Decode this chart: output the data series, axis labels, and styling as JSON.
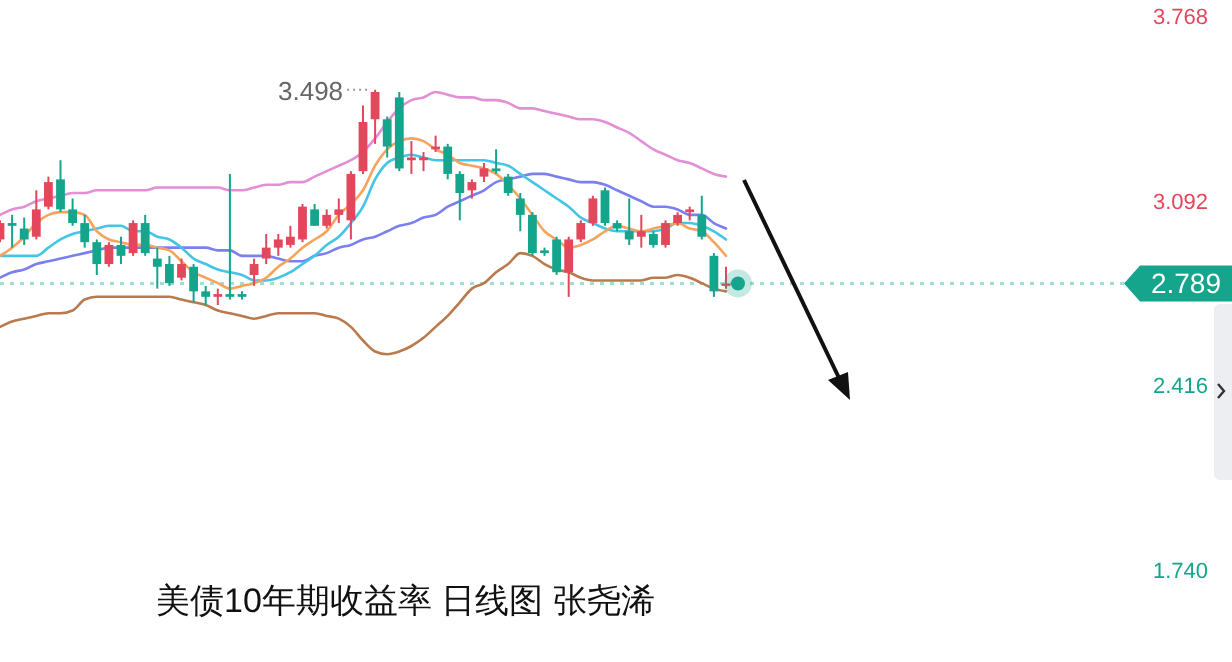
{
  "chart_data": {
    "type": "candlestick",
    "title": "美债10年期收益率  日线图 张尧浠",
    "categories": [
      null,
      null,
      null,
      null,
      null,
      null,
      null,
      null,
      null,
      null,
      null,
      null,
      null,
      null,
      null,
      null,
      null,
      null,
      null,
      null,
      null,
      null,
      null,
      null,
      null,
      null,
      null,
      null,
      null,
      null,
      null,
      null,
      null,
      null,
      null,
      null,
      null,
      null,
      null,
      null,
      null,
      null,
      null,
      null,
      null,
      null,
      null,
      null,
      null,
      null,
      null,
      null,
      null,
      null,
      null,
      null,
      null,
      null,
      null,
      null,
      null
    ],
    "ohlc": [
      [
        2.95,
        3.02,
        2.94,
        3.01
      ],
      [
        3.01,
        3.04,
        2.92,
        3.0
      ],
      [
        2.99,
        3.03,
        2.93,
        2.95
      ],
      [
        2.96,
        3.13,
        2.95,
        3.06
      ],
      [
        3.07,
        3.18,
        3.06,
        3.16
      ],
      [
        3.17,
        3.24,
        3.05,
        3.06
      ],
      [
        3.06,
        3.1,
        3.0,
        3.01
      ],
      [
        3.01,
        3.04,
        2.92,
        2.94
      ],
      [
        2.94,
        2.95,
        2.82,
        2.86
      ],
      [
        2.86,
        2.94,
        2.85,
        2.93
      ],
      [
        2.93,
        2.96,
        2.86,
        2.89
      ],
      [
        2.9,
        3.02,
        2.89,
        3.01
      ],
      [
        3.01,
        3.04,
        2.89,
        2.9
      ],
      [
        2.88,
        2.92,
        2.77,
        2.85
      ],
      [
        2.86,
        2.89,
        2.78,
        2.79
      ],
      [
        2.81,
        2.88,
        2.8,
        2.86
      ],
      [
        2.85,
        2.86,
        2.72,
        2.76
      ],
      [
        2.76,
        2.78,
        2.71,
        2.74
      ],
      [
        2.74,
        2.77,
        2.71,
        2.75
      ],
      [
        2.75,
        3.19,
        2.73,
        2.74
      ],
      [
        2.75,
        2.76,
        2.73,
        2.74
      ],
      [
        2.82,
        2.88,
        2.78,
        2.86
      ],
      [
        2.88,
        2.97,
        2.86,
        2.92
      ],
      [
        2.92,
        2.97,
        2.89,
        2.95
      ],
      [
        2.93,
        3.0,
        2.92,
        2.96
      ],
      [
        2.95,
        3.08,
        2.94,
        3.07
      ],
      [
        3.06,
        3.08,
        3.0,
        3.0
      ],
      [
        3.0,
        3.06,
        2.99,
        3.04
      ],
      [
        3.04,
        3.1,
        3.01,
        3.06
      ],
      [
        3.02,
        3.2,
        2.95,
        3.19
      ],
      [
        3.2,
        3.44,
        3.19,
        3.38
      ],
      [
        3.39,
        3.498,
        3.3,
        3.49
      ],
      [
        3.39,
        3.4,
        3.25,
        3.29
      ],
      [
        3.47,
        3.49,
        3.2,
        3.21
      ],
      [
        3.24,
        3.31,
        3.19,
        3.25
      ],
      [
        3.24,
        3.27,
        3.2,
        3.25
      ],
      [
        3.28,
        3.33,
        3.27,
        3.29
      ],
      [
        3.29,
        3.3,
        3.17,
        3.19
      ],
      [
        3.19,
        3.2,
        3.02,
        3.12
      ],
      [
        3.13,
        3.17,
        3.1,
        3.16
      ],
      [
        3.18,
        3.23,
        3.16,
        3.21
      ],
      [
        3.21,
        3.28,
        3.19,
        3.2
      ],
      [
        3.18,
        3.19,
        3.11,
        3.12
      ],
      [
        3.1,
        3.12,
        2.98,
        3.04
      ],
      [
        3.04,
        3.05,
        2.89,
        2.9
      ],
      [
        2.91,
        2.92,
        2.89,
        2.9
      ],
      [
        2.95,
        2.96,
        2.82,
        2.83
      ],
      [
        2.83,
        2.96,
        2.74,
        2.95
      ],
      [
        2.95,
        3.02,
        2.94,
        3.01
      ],
      [
        3.01,
        3.11,
        3.0,
        3.1
      ],
      [
        3.13,
        3.14,
        3.0,
        3.01
      ],
      [
        3.01,
        3.02,
        2.98,
        2.99
      ],
      [
        2.98,
        3.1,
        2.93,
        2.95
      ],
      [
        2.96,
        3.04,
        2.92,
        2.98
      ],
      [
        2.97,
        2.98,
        2.92,
        2.93
      ],
      [
        2.93,
        3.02,
        2.92,
        3.01
      ],
      [
        3.01,
        3.05,
        3.0,
        3.04
      ],
      [
        3.05,
        3.07,
        3.02,
        3.06
      ],
      [
        3.04,
        3.11,
        2.95,
        2.96
      ],
      [
        2.89,
        2.9,
        2.74,
        2.76
      ],
      [
        2.78,
        2.85,
        2.77,
        2.789
      ]
    ],
    "colors": [
      "#e2475b",
      "#14a58c",
      "#14a58c",
      "#e2475b",
      "#e2475b",
      "#14a58c",
      "#14a58c",
      "#14a58c",
      "#14a58c",
      "#e2475b",
      "#14a58c",
      "#e2475b",
      "#14a58c",
      "#14a58c",
      "#14a58c",
      "#e2475b",
      "#14a58c",
      "#14a58c",
      "#e2475b",
      "#14a58c",
      "#14a58c",
      "#e2475b",
      "#e2475b",
      "#e2475b",
      "#e2475b",
      "#e2475b",
      "#14a58c",
      "#e2475b",
      "#e2475b",
      "#e2475b",
      "#e2475b",
      "#e2475b",
      "#14a58c",
      "#14a58c",
      "#e2475b",
      "#e2475b",
      "#e2475b",
      "#14a58c",
      "#14a58c",
      "#e2475b",
      "#e2475b",
      "#14a58c",
      "#14a58c",
      "#14a58c",
      "#14a58c",
      "#14a58c",
      "#14a58c",
      "#e2475b",
      "#e2475b",
      "#e2475b",
      "#14a58c",
      "#14a58c",
      "#14a58c",
      "#e2475b",
      "#14a58c",
      "#e2475b",
      "#e2475b",
      "#e2475b",
      "#14a58c",
      "#14a58c",
      "#e2475b"
    ],
    "series": [
      {
        "type": "line",
        "color": "#e38fd6",
        "values": [
          3.04,
          3.06,
          3.07,
          3.09,
          3.1,
          3.11,
          3.12,
          3.12,
          3.13,
          3.13,
          3.13,
          3.13,
          3.13,
          3.14,
          3.14,
          3.14,
          3.14,
          3.14,
          3.14,
          3.13,
          3.13,
          3.14,
          3.15,
          3.15,
          3.16,
          3.16,
          3.18,
          3.2,
          3.22,
          3.24,
          3.27,
          3.32,
          3.38,
          3.43,
          3.46,
          3.47,
          3.49,
          3.48,
          3.47,
          3.47,
          3.46,
          3.46,
          3.45,
          3.43,
          3.43,
          3.42,
          3.41,
          3.4,
          3.39,
          3.39,
          3.38,
          3.36,
          3.34,
          3.31,
          3.28,
          3.26,
          3.24,
          3.23,
          3.21,
          3.19,
          3.18
        ]
      },
      {
        "type": "line",
        "color": "#7b7ff0",
        "values": [
          2.81,
          2.83,
          2.84,
          2.86,
          2.87,
          2.88,
          2.89,
          2.9,
          2.91,
          2.92,
          2.92,
          2.92,
          2.92,
          2.92,
          2.92,
          2.92,
          2.92,
          2.92,
          2.91,
          2.91,
          2.89,
          2.89,
          2.89,
          2.88,
          2.87,
          2.87,
          2.89,
          2.9,
          2.92,
          2.93,
          2.95,
          2.96,
          2.98,
          3.0,
          3.01,
          3.03,
          3.04,
          3.07,
          3.09,
          3.11,
          3.13,
          3.16,
          3.17,
          3.18,
          3.19,
          3.19,
          3.18,
          3.17,
          3.16,
          3.16,
          3.15,
          3.13,
          3.11,
          3.09,
          3.07,
          3.07,
          3.06,
          3.04,
          3.04,
          3.01,
          2.99
        ]
      },
      {
        "type": "line",
        "color": "#44c4e6",
        "values": [
          2.89,
          2.89,
          2.89,
          2.89,
          2.92,
          2.95,
          2.97,
          2.98,
          2.99,
          3.0,
          3.0,
          2.98,
          2.98,
          2.96,
          2.95,
          2.92,
          2.88,
          2.86,
          2.84,
          2.83,
          2.82,
          2.8,
          2.8,
          2.81,
          2.83,
          2.86,
          2.89,
          2.93,
          2.96,
          3.01,
          3.07,
          3.17,
          3.23,
          3.25,
          3.26,
          3.25,
          3.24,
          3.24,
          3.24,
          3.24,
          3.24,
          3.23,
          3.22,
          3.19,
          3.16,
          3.13,
          3.1,
          3.07,
          3.03,
          3.01,
          2.99,
          2.98,
          2.98,
          2.98,
          2.98,
          2.99,
          3.01,
          3.01,
          3.0,
          2.98,
          2.95
        ]
      },
      {
        "type": "line",
        "color": "#f7a35c",
        "values": [
          2.89,
          2.92,
          2.96,
          3.01,
          3.04,
          3.05,
          3.05,
          3.04,
          2.98,
          2.95,
          2.94,
          2.93,
          2.93,
          2.92,
          2.91,
          2.87,
          2.83,
          2.81,
          2.79,
          2.77,
          2.78,
          2.79,
          2.81,
          2.85,
          2.88,
          2.92,
          2.95,
          2.98,
          3.04,
          3.08,
          3.13,
          3.22,
          3.28,
          3.31,
          3.32,
          3.31,
          3.28,
          3.26,
          3.23,
          3.22,
          3.21,
          3.19,
          3.15,
          3.1,
          3.04,
          2.98,
          2.95,
          2.92,
          2.93,
          2.95,
          2.98,
          3.0,
          2.99,
          2.98,
          2.99,
          3.0,
          3.01,
          2.99,
          2.98,
          2.94,
          2.89
        ]
      },
      {
        "type": "line",
        "color": "#b97a4d",
        "values": [
          2.63,
          2.65,
          2.66,
          2.67,
          2.68,
          2.68,
          2.69,
          2.73,
          2.74,
          2.74,
          2.74,
          2.74,
          2.74,
          2.74,
          2.74,
          2.73,
          2.72,
          2.71,
          2.69,
          2.68,
          2.67,
          2.66,
          2.67,
          2.68,
          2.68,
          2.68,
          2.68,
          2.67,
          2.66,
          2.63,
          2.58,
          2.54,
          2.53,
          2.54,
          2.56,
          2.59,
          2.63,
          2.67,
          2.72,
          2.77,
          2.79,
          2.83,
          2.86,
          2.9,
          2.89,
          2.86,
          2.84,
          2.83,
          2.81,
          2.8,
          2.8,
          2.8,
          2.8,
          2.8,
          2.81,
          2.81,
          2.82,
          2.81,
          2.79,
          2.77,
          2.76
        ]
      }
    ],
    "ylim": [
      1.74,
      3.768
    ],
    "yticks": [
      3.768,
      3.092,
      2.416,
      {
        "value": 1.74,
        "label": "1.740"
      }
    ],
    "tick_labels": "y",
    "ref_lines": [
      {
        "axis": "y",
        "value": 2.789,
        "label": "2.789",
        "color": "#9edfd2",
        "line_style": "dotted"
      }
    ],
    "annotations": [
      "3.498"
    ]
  }
}
